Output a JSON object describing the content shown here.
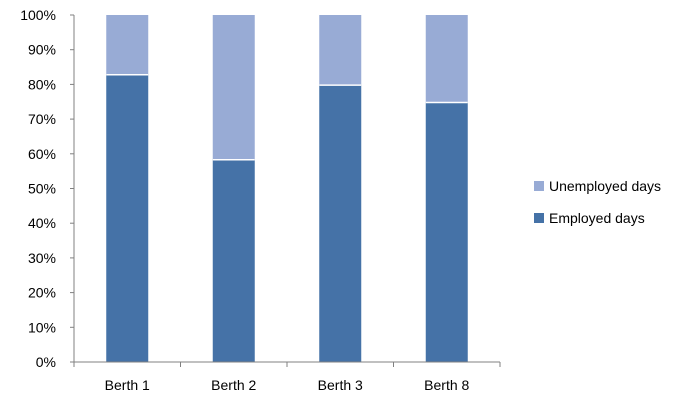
{
  "chart_data": {
    "type": "bar",
    "stacked": true,
    "percent_stacked": true,
    "categories": [
      "Berth 1",
      "Berth 2",
      "Berth 3",
      "Berth 8"
    ],
    "series": [
      {
        "name": "Employed days",
        "values": [
          83,
          58.5,
          80,
          75
        ],
        "color": "#4572A7"
      },
      {
        "name": "Unemployed days",
        "values": [
          17,
          41.5,
          20,
          25
        ],
        "color": "#98ABD5"
      }
    ],
    "y_ticks": [
      "0%",
      "10%",
      "20%",
      "30%",
      "40%",
      "50%",
      "60%",
      "70%",
      "80%",
      "90%",
      "100%"
    ],
    "ylim": [
      0,
      100
    ],
    "grid": false,
    "legend": {
      "position": "right",
      "items": [
        {
          "label": "Unemployed days",
          "color": "#98ABD5"
        },
        {
          "label": "Employed days",
          "color": "#4572A7"
        }
      ]
    },
    "colors": {
      "axis": "#808080",
      "text": "#000000"
    }
  }
}
